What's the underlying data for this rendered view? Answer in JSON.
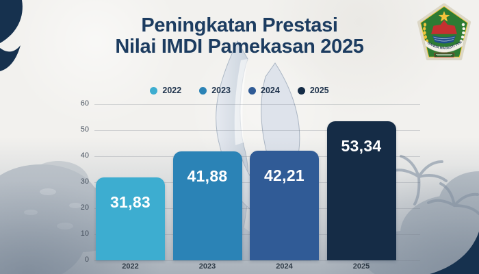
{
  "header": {
    "title_line1": "Peningkatan Prestasi",
    "title_line2": "Nilai IMDI Pamekasan 2025"
  },
  "logo": {
    "motto_text": "MADU GANDA MAGESTI TUNGGAL"
  },
  "chart_data": {
    "type": "bar",
    "title": "Peningkatan Prestasi Nilai IMDI Pamekasan 2025",
    "categories": [
      "2022",
      "2023",
      "2024",
      "2025"
    ],
    "values": [
      31.83,
      41.88,
      42.21,
      53.34
    ],
    "value_labels": [
      "31,83",
      "41,88",
      "42,21",
      "53,34"
    ],
    "bar_colors": [
      "#3DADD0",
      "#2B83B6",
      "#305B96",
      "#152C46"
    ],
    "legend": [
      {
        "label": "2022",
        "color": "#3DADD0"
      },
      {
        "label": "2023",
        "color": "#2B83B6"
      },
      {
        "label": "2024",
        "color": "#305B96"
      },
      {
        "label": "2025",
        "color": "#152C46"
      }
    ],
    "xlabel": "",
    "ylabel": "",
    "ylim": [
      0,
      60
    ],
    "yticks": [
      0,
      10,
      20,
      30,
      40,
      50,
      60
    ],
    "grid": true,
    "legend_position": "top-center"
  },
  "colors": {
    "accent_navy": "#16314E",
    "title_text": "#1C3C60",
    "background": "#F2F1EE"
  }
}
